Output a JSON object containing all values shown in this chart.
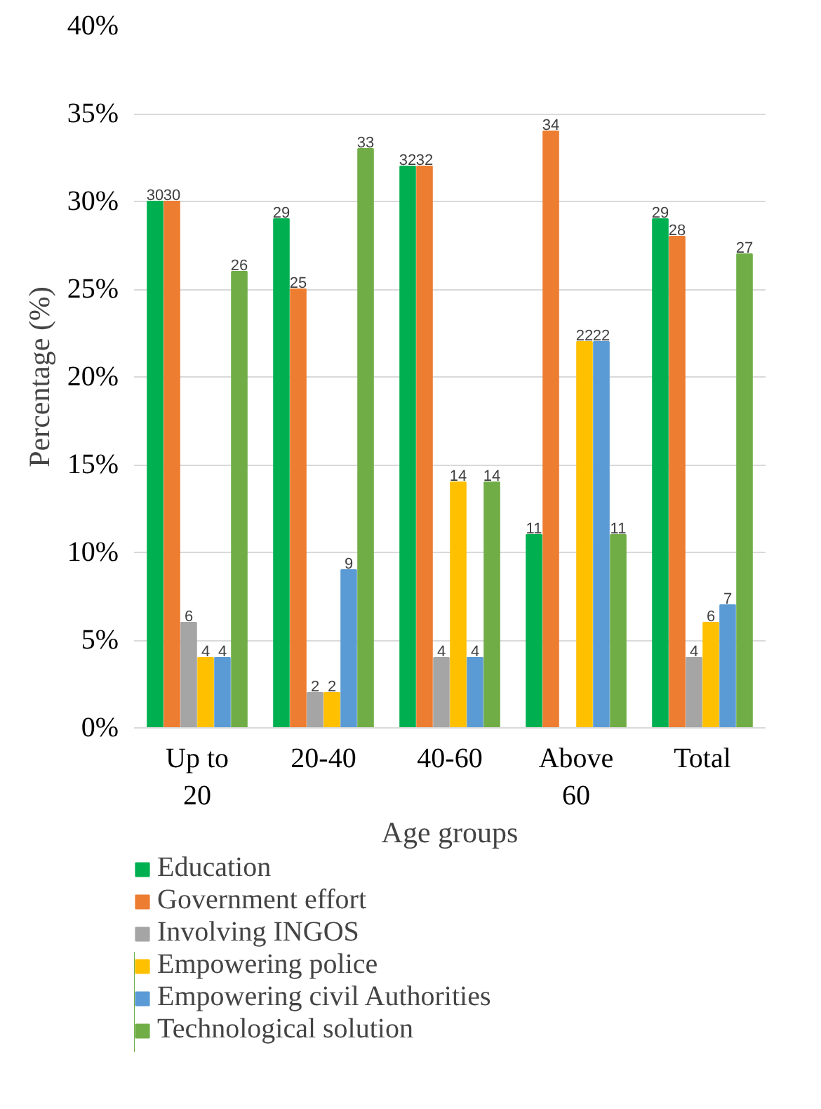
{
  "chart_data": {
    "type": "bar",
    "xlabel": "Age groups",
    "ylabel": "Percentage (%)",
    "categories": [
      "Up to 20",
      "20-40",
      "40-60",
      "Above 60",
      "Total"
    ],
    "series": [
      {
        "name": "Education",
        "color": "#00b050",
        "values": [
          30,
          29,
          32,
          11,
          29
        ]
      },
      {
        "name": "Government effort",
        "color": "#ed7d31",
        "values": [
          30,
          25,
          32,
          34,
          28
        ]
      },
      {
        "name": "Involving INGOS",
        "color": "#a5a5a5",
        "values": [
          6,
          2,
          4,
          null,
          4
        ]
      },
      {
        "name": "Empowering police",
        "color": "#ffc000",
        "values": [
          4,
          2,
          14,
          22,
          6
        ]
      },
      {
        "name": "Empowering civil Authorities",
        "color": "#5b9bd5",
        "values": [
          4,
          9,
          4,
          22,
          7
        ]
      },
      {
        "name": "Technological solution",
        "color": "#70ad47",
        "values": [
          26,
          33,
          14,
          11,
          27
        ]
      }
    ],
    "ylim": [
      0,
      40
    ],
    "yticks": [
      {
        "value": 0,
        "label": "0%"
      },
      {
        "value": 5,
        "label": "5%"
      },
      {
        "value": 10,
        "label": "10%"
      },
      {
        "value": 15,
        "label": "15%"
      },
      {
        "value": 20,
        "label": "20%"
      },
      {
        "value": 25,
        "label": "25%"
      },
      {
        "value": 30,
        "label": "30%"
      },
      {
        "value": 35,
        "label": "35%"
      },
      {
        "value": 40,
        "label": "40%"
      }
    ],
    "grid": "y",
    "legend": "bottom",
    "data_labels": true
  }
}
